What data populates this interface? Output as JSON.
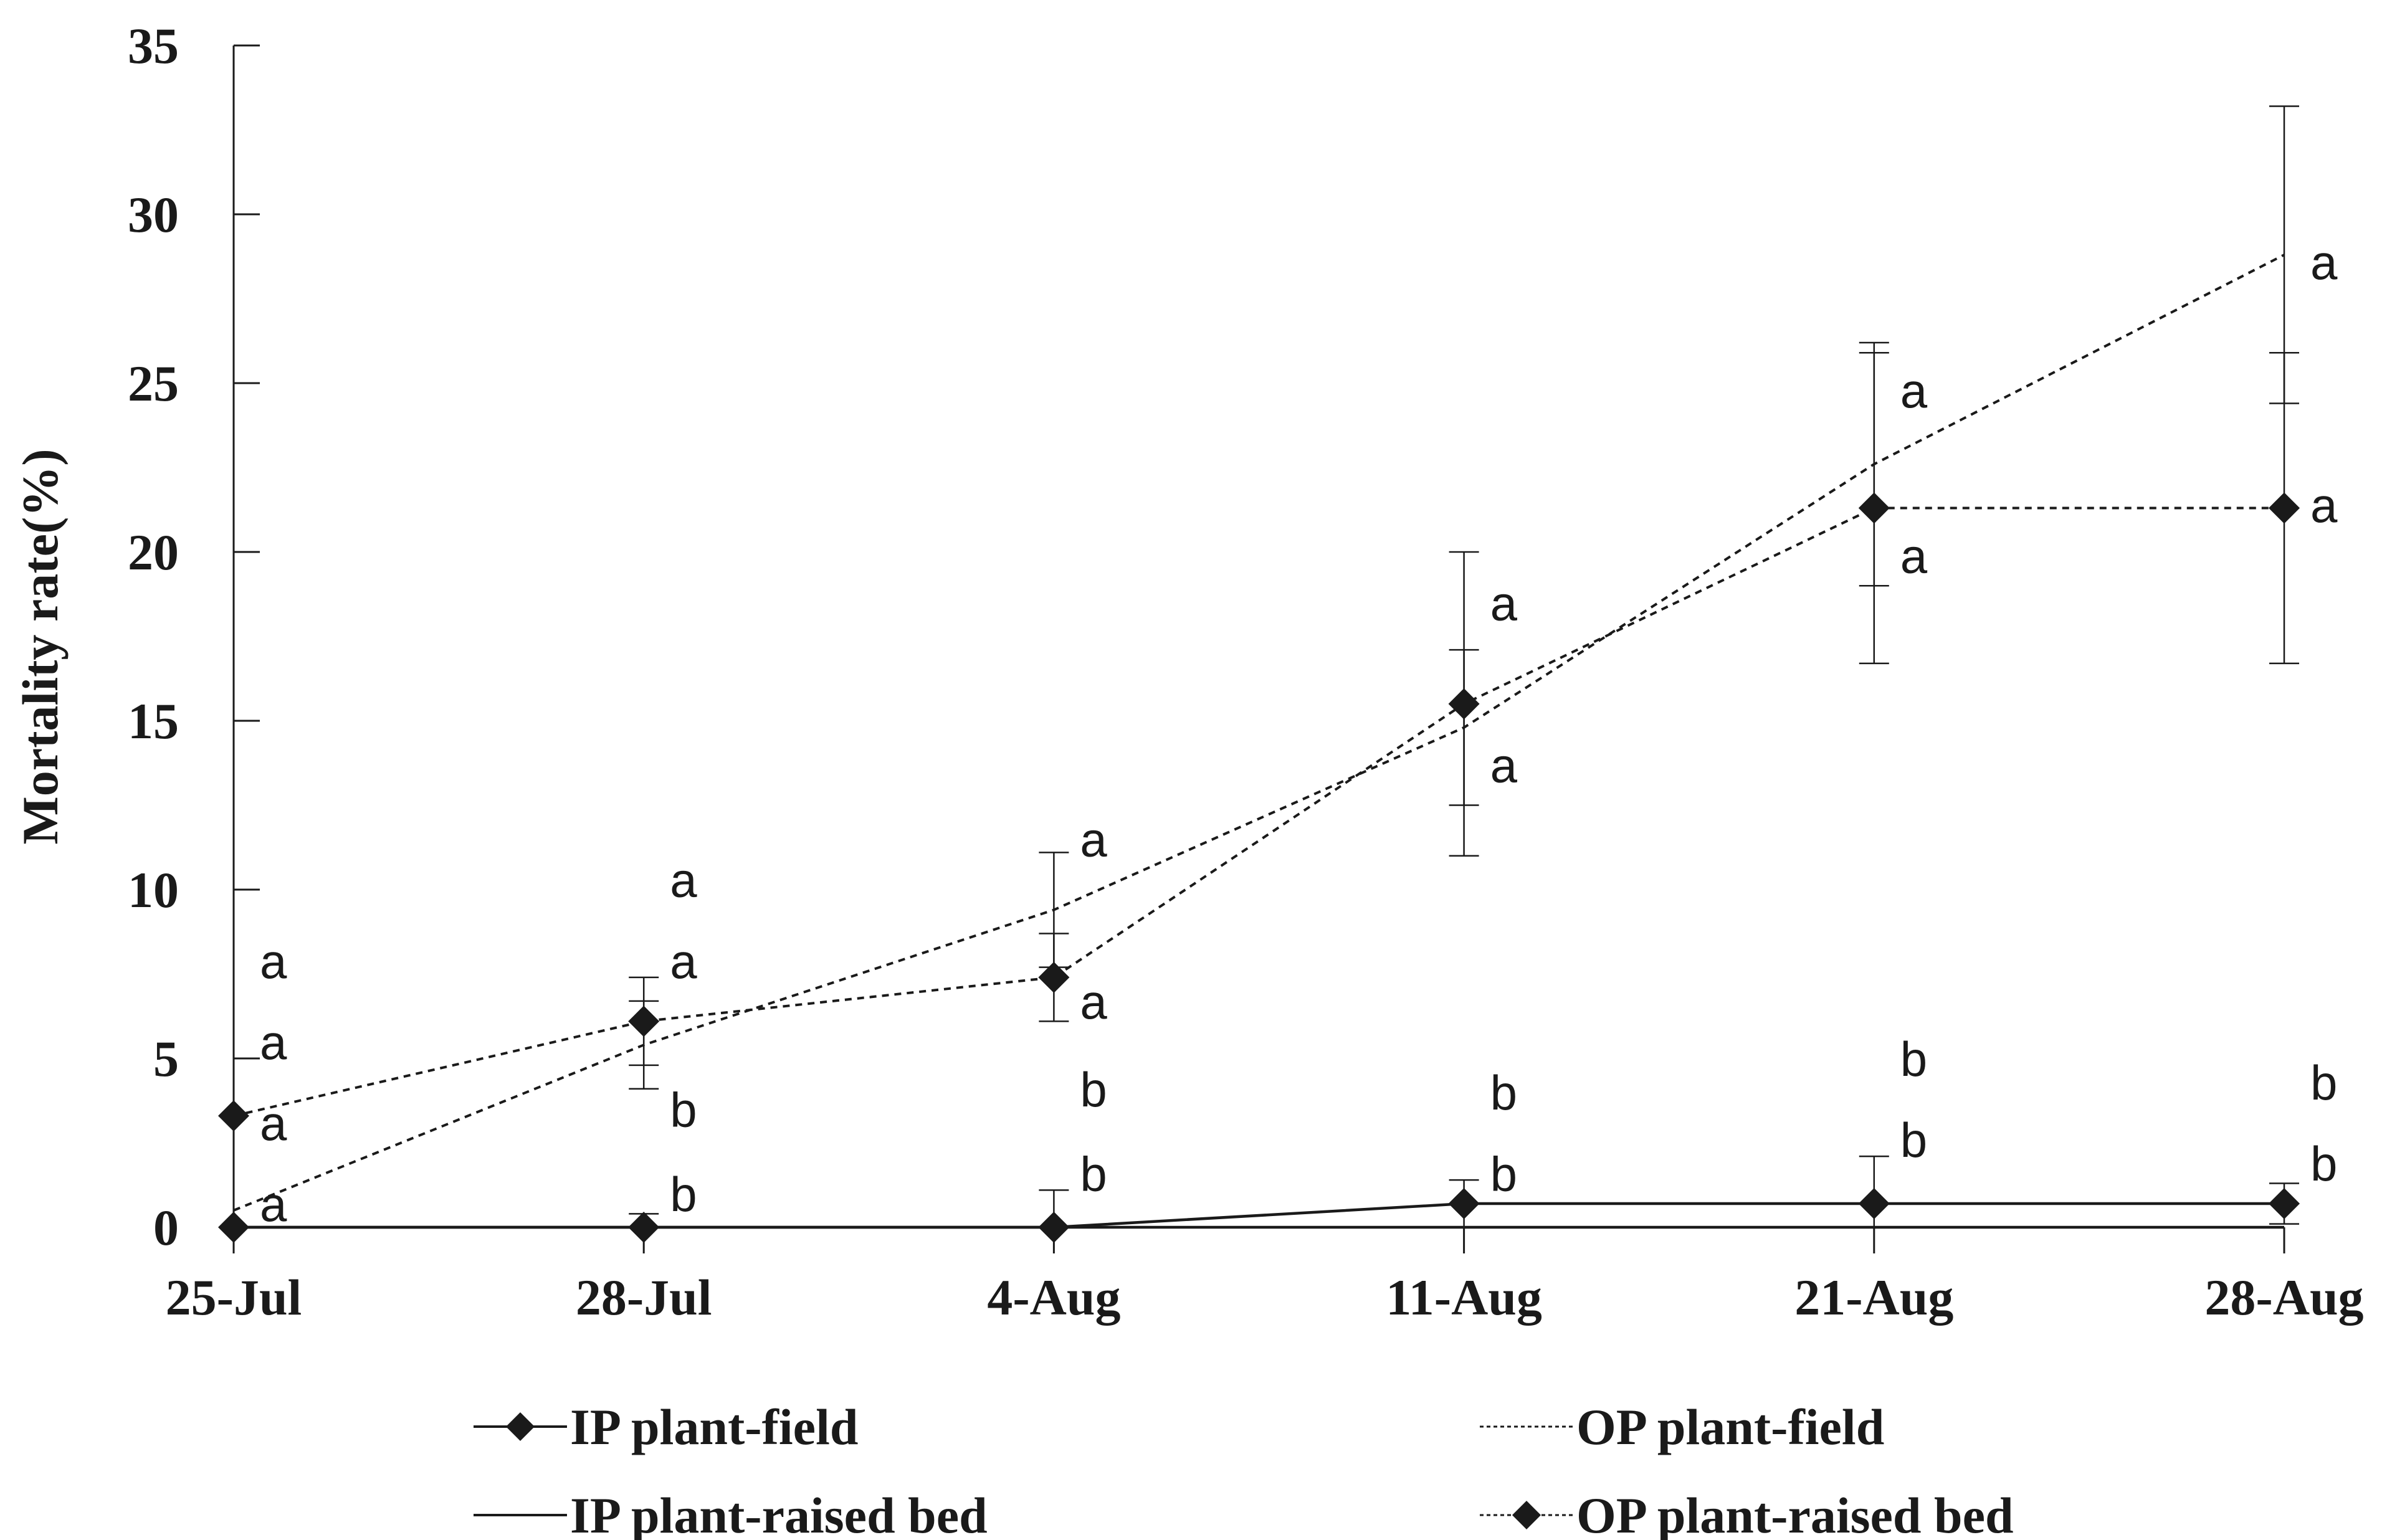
{
  "chart_data": {
    "type": "line",
    "x": [
      "25-Jul",
      "28-Jul",
      "4-Aug",
      "11-Aug",
      "21-Aug",
      "28-Aug"
    ],
    "xlabel": "",
    "ylabel": "Mortality rate(%)",
    "ylim": [
      0,
      35
    ],
    "yticks": [
      "0",
      "5",
      "10",
      "15",
      "20",
      "25",
      "30",
      "35"
    ],
    "grid": false,
    "legend_position": "bottom",
    "series": [
      {
        "name": "IP plant-field",
        "line": "solid",
        "marker": "diamond",
        "values": [
          0,
          0,
          0,
          0.7,
          0.7,
          0.7
        ],
        "error": [
          0,
          0.4,
          1.1,
          0.7,
          1.4,
          0.6
        ],
        "letters": [
          "a",
          "b",
          "b",
          "b",
          "b",
          "b"
        ]
      },
      {
        "name": "OP plant-field",
        "line": "dotted",
        "marker": "none",
        "values": [
          0.5,
          5.4,
          9.4,
          14.8,
          22.6,
          28.8
        ],
        "error": [
          0,
          1.3,
          1.7,
          2.3,
          3.6,
          4.4
        ],
        "letters": [
          "a",
          "a",
          "a",
          "a",
          "a",
          "a"
        ]
      },
      {
        "name": "IP plant-raised bed",
        "line": "solid",
        "marker": "none",
        "values": [
          0,
          0,
          0,
          0,
          0,
          0
        ],
        "error": [
          0,
          0,
          0,
          0,
          0,
          0
        ],
        "letters": [
          "a",
          "b",
          "b",
          "b",
          "b",
          "b"
        ]
      },
      {
        "name": "OP plant-raised bed",
        "line": "dotted",
        "marker": "diamond",
        "values": [
          3.3,
          6.1,
          7.4,
          15.5,
          21.3,
          21.3
        ],
        "error": [
          0,
          1.3,
          1.3,
          4.5,
          4.6,
          4.6
        ],
        "letters": [
          "a",
          "a",
          "a",
          "a",
          "a",
          "a"
        ]
      }
    ],
    "annotations": [
      {
        "x": "25-Jul",
        "y": 7.9,
        "text": "a"
      },
      {
        "x": "25-Jul",
        "y": 5.5,
        "text": "a"
      },
      {
        "x": "25-Jul",
        "y": 3.1,
        "text": "a"
      },
      {
        "x": "25-Jul",
        "y": 0.7,
        "text": "a"
      },
      {
        "x": "28-Jul",
        "y": 10.3,
        "text": "a"
      },
      {
        "x": "28-Jul",
        "y": 7.9,
        "text": "a"
      },
      {
        "x": "28-Jul",
        "y": 3.5,
        "text": "b"
      },
      {
        "x": "28-Jul",
        "y": 1.0,
        "text": "b"
      },
      {
        "x": "4-Aug",
        "y": 11.5,
        "text": "a"
      },
      {
        "x": "4-Aug",
        "y": 6.7,
        "text": "a"
      },
      {
        "x": "4-Aug",
        "y": 4.1,
        "text": "b"
      },
      {
        "x": "4-Aug",
        "y": 1.6,
        "text": "b"
      },
      {
        "x": "11-Aug",
        "y": 18.5,
        "text": "a"
      },
      {
        "x": "11-Aug",
        "y": 13.7,
        "text": "a"
      },
      {
        "x": "11-Aug",
        "y": 4.0,
        "text": "b"
      },
      {
        "x": "11-Aug",
        "y": 1.6,
        "text": "b"
      },
      {
        "x": "21-Aug",
        "y": 24.8,
        "text": "a"
      },
      {
        "x": "21-Aug",
        "y": 19.9,
        "text": "a"
      },
      {
        "x": "21-Aug",
        "y": 5.0,
        "text": "b"
      },
      {
        "x": "21-Aug",
        "y": 2.6,
        "text": "b"
      },
      {
        "x": "28-Aug",
        "y": 28.6,
        "text": "a"
      },
      {
        "x": "28-Aug",
        "y": 21.4,
        "text": "a"
      },
      {
        "x": "28-Aug",
        "y": 4.3,
        "text": "b"
      },
      {
        "x": "28-Aug",
        "y": 1.9,
        "text": "b"
      }
    ],
    "colors": {
      "ink": "#1a1a1a",
      "background": "#ffffff"
    }
  }
}
